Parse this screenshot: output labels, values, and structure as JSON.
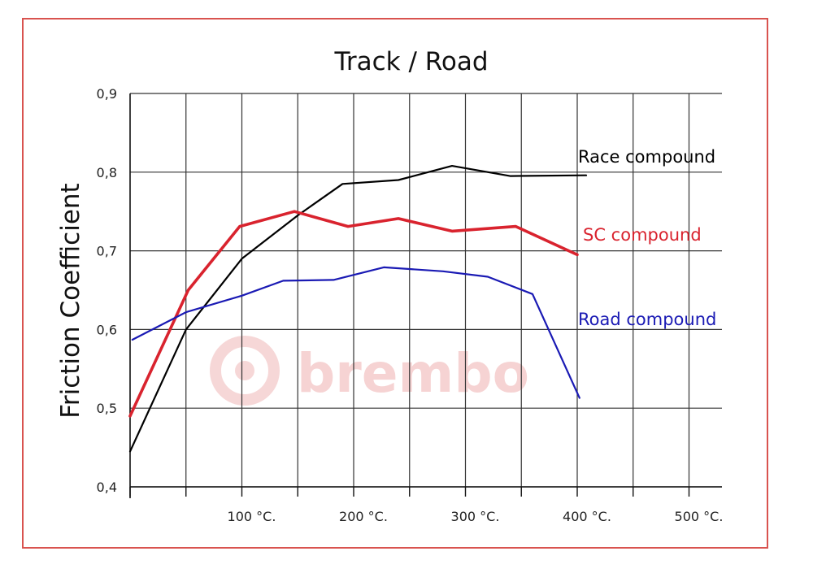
{
  "chart_data": {
    "type": "line",
    "title": "Track / Road",
    "ylabel": "Friction Coefficient",
    "xlabel": "",
    "xlim": [
      0,
      535
    ],
    "ylim": [
      0.4,
      0.9
    ],
    "x_tick_values": [
      100,
      200,
      300,
      400,
      500
    ],
    "x_tick_labels": [
      "100 °C.",
      "200 °C.",
      "300 °C.",
      "400 °C.",
      "500 °C."
    ],
    "y_tick_values": [
      0.4,
      0.5,
      0.6,
      0.7,
      0.8,
      0.9
    ],
    "y_tick_labels": [
      "0,4",
      "0,5",
      "0,6",
      "0,7",
      "0,8",
      "0,9"
    ],
    "grid": true,
    "watermark": "brembo",
    "series": [
      {
        "name": "Race compound",
        "color": "#000000",
        "x": [
          0,
          50,
          100,
          150,
          190,
          240,
          288,
          340,
          408
        ],
        "y": [
          0.445,
          0.6,
          0.69,
          0.745,
          0.785,
          0.79,
          0.808,
          0.795,
          0.796
        ]
      },
      {
        "name": "SC compound",
        "color": "#d9232e",
        "x": [
          0,
          52,
          98,
          147,
          195,
          240,
          288,
          345,
          400
        ],
        "y": [
          0.49,
          0.65,
          0.731,
          0.75,
          0.731,
          0.741,
          0.725,
          0.731,
          0.695
        ]
      },
      {
        "name": "Road compound",
        "color": "#1a1ab4",
        "x": [
          2,
          50,
          100,
          137,
          182,
          227,
          280,
          320,
          360,
          402
        ],
        "y": [
          0.587,
          0.622,
          0.643,
          0.662,
          0.663,
          0.679,
          0.674,
          0.667,
          0.645,
          0.513
        ]
      }
    ]
  }
}
